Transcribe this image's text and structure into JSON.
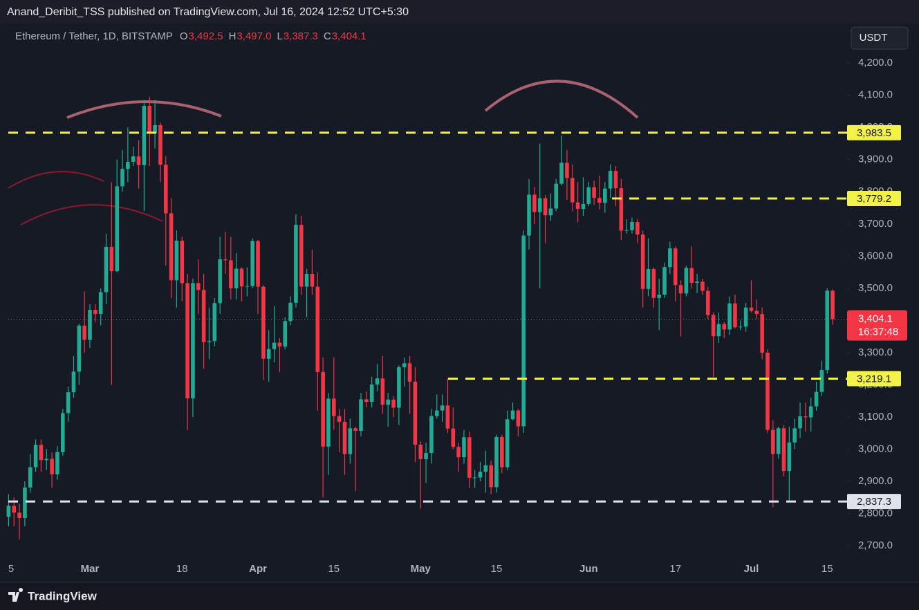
{
  "header": {
    "title": "Anand_Deribit_TSS published on TradingView.com, Jul 16, 2024 12:52 UTC+5:30",
    "logo": "TradingView"
  },
  "chart_data": {
    "type": "candlestick",
    "legend_title": "Ethereum / Tether, 1D, BITSTAMP",
    "ohlc": [
      {
        "key": "O",
        "value": 3492.5,
        "label": "3,492.5"
      },
      {
        "key": "H",
        "value": 3497.0,
        "label": "3,497.0"
      },
      {
        "key": "L",
        "value": 3387.3,
        "label": "3,387.3"
      },
      {
        "key": "C",
        "value": 3404.1,
        "label": "3,404.1"
      }
    ],
    "currency": "USDT",
    "up_color": "#22ab94",
    "down_color": "#f23645",
    "x": [
      "Feb 15",
      "Feb 16",
      "Feb 17",
      "Feb 18",
      "Feb 19",
      "Feb 20",
      "Feb 21",
      "Feb 22",
      "Feb 23",
      "Feb 24",
      "Feb 25",
      "Feb 26",
      "Feb 27",
      "Feb 28",
      "Feb 29",
      "Mar 1",
      "Mar 2",
      "Mar 3",
      "Mar 4",
      "Mar 5",
      "Mar 6",
      "Mar 7",
      "Mar 8",
      "Mar 9",
      "Mar 10",
      "Mar 11",
      "Mar 12",
      "Mar 13",
      "Mar 14",
      "Mar 15",
      "Mar 16",
      "Mar 17",
      "Mar 18",
      "Mar 19",
      "Mar 20",
      "Mar 21",
      "Mar 22",
      "Mar 23",
      "Mar 24",
      "Mar 25",
      "Mar 26",
      "Mar 27",
      "Mar 28",
      "Mar 29",
      "Mar 30",
      "Mar 31",
      "Apr 1",
      "Apr 2",
      "Apr 3",
      "Apr 4",
      "Apr 5",
      "Apr 6",
      "Apr 7",
      "Apr 8",
      "Apr 9",
      "Apr 10",
      "Apr 11",
      "Apr 12",
      "Apr 13",
      "Apr 14",
      "Apr 15",
      "Apr 16",
      "Apr 17",
      "Apr 18",
      "Apr 19",
      "Apr 20",
      "Apr 21",
      "Apr 22",
      "Apr 23",
      "Apr 24",
      "Apr 25",
      "Apr 26",
      "Apr 27",
      "Apr 28",
      "Apr 29",
      "Apr 30",
      "May 1",
      "May 2",
      "May 3",
      "May 4",
      "May 5",
      "May 6",
      "May 7",
      "May 8",
      "May 9",
      "May 10",
      "May 11",
      "May 12",
      "May 13",
      "May 14",
      "May 15",
      "May 16",
      "May 17",
      "May 18",
      "May 19",
      "May 20",
      "May 21",
      "May 22",
      "May 23",
      "May 24",
      "May 25",
      "May 26",
      "May 27",
      "May 28",
      "May 29",
      "May 30",
      "May 31",
      "Jun 1",
      "Jun 2",
      "Jun 3",
      "Jun 4",
      "Jun 5",
      "Jun 6",
      "Jun 7",
      "Jun 8",
      "Jun 9",
      "Jun 10",
      "Jun 11",
      "Jun 12",
      "Jun 13",
      "Jun 14",
      "Jun 15",
      "Jun 16",
      "Jun 17",
      "Jun 18",
      "Jun 19",
      "Jun 20",
      "Jun 21",
      "Jun 22",
      "Jun 23",
      "Jun 24",
      "Jun 25",
      "Jun 26",
      "Jun 27",
      "Jun 28",
      "Jun 29",
      "Jun 30",
      "Jul 1",
      "Jul 2",
      "Jul 3",
      "Jul 4",
      "Jul 5",
      "Jul 6",
      "Jul 7",
      "Jul 8",
      "Jul 9",
      "Jul 10",
      "Jul 11",
      "Jul 12",
      "Jul 13",
      "Jul 14",
      "Jul 15",
      "Jul 16"
    ],
    "open": [
      2790,
      2824,
      2803,
      2786,
      2881,
      2944,
      3014,
      2966,
      2970,
      2922,
      2991,
      3112,
      3177,
      3241,
      3384,
      3340,
      3433,
      3420,
      3488,
      3629,
      3553,
      3817,
      3871,
      3893,
      3910,
      3883,
      4067,
      3983,
      4007,
      3884,
      3733,
      3525,
      3648,
      3516,
      3158,
      3516,
      3495,
      3333,
      3336,
      3454,
      3590,
      3587,
      3500,
      3561,
      3506,
      3507,
      3647,
      3505,
      3281,
      3311,
      3331,
      3319,
      3398,
      3455,
      3697,
      3505,
      3545,
      3505,
      3240,
      3008,
      3157,
      3103,
      3085,
      2985,
      3065,
      3057,
      3155,
      3147,
      3201,
      3220,
      3138,
      3154,
      3129,
      3255,
      3267,
      3210,
      3014,
      2969,
      2988,
      3103,
      3120,
      3136,
      3064,
      3007,
      2975,
      3037,
      2911,
      2912,
      2930,
      2950,
      2882,
      3038,
      2944,
      3093,
      3120,
      3071,
      3664,
      3791,
      3737,
      3780,
      3727,
      3748,
      3825,
      3890,
      3843,
      3767,
      3747,
      3762,
      3814,
      3781,
      3766,
      3810,
      3865,
      3811,
      3679,
      3681,
      3706,
      3667,
      3498,
      3560,
      3470,
      3480,
      3566,
      3624,
      3510,
      3484,
      3563,
      3517,
      3521,
      3492,
      3417,
      3351,
      3389,
      3372,
      3453,
      3379,
      3381,
      3440,
      3430,
      3420,
      3300,
      3060,
      2985,
      3065,
      2932,
      3021,
      3065,
      3102,
      3099,
      3133,
      3178,
      3246,
      3492.5
    ],
    "high": [
      2860,
      2850,
      2830,
      2900,
      2985,
      3030,
      3030,
      3000,
      2990,
      3010,
      3125,
      3195,
      3290,
      3390,
      3490,
      3450,
      3450,
      3500,
      3670,
      3830,
      3900,
      3930,
      4000,
      3940,
      3960,
      4085,
      4095,
      4085,
      4015,
      3910,
      3780,
      3680,
      3660,
      3545,
      3530,
      3590,
      3545,
      3440,
      3470,
      3660,
      3675,
      3660,
      3610,
      3565,
      3565,
      3655,
      3650,
      3510,
      3370,
      3445,
      3345,
      3410,
      3475,
      3730,
      3725,
      3560,
      3620,
      3550,
      3285,
      3175,
      3285,
      3125,
      3125,
      3095,
      3070,
      3175,
      3180,
      3225,
      3265,
      3290,
      3175,
      3165,
      3260,
      3285,
      3290,
      3255,
      3025,
      3020,
      3125,
      3170,
      3170,
      3220,
      3130,
      3020,
      3060,
      3055,
      2935,
      2960,
      2995,
      2965,
      3045,
      3045,
      3120,
      3145,
      3125,
      3680,
      3840,
      3815,
      3950,
      3790,
      3795,
      3840,
      3975,
      3930,
      3885,
      3830,
      3845,
      3830,
      3835,
      3850,
      3830,
      3885,
      3880,
      3840,
      3715,
      3720,
      3715,
      3680,
      3655,
      3565,
      3530,
      3580,
      3645,
      3630,
      3525,
      3570,
      3630,
      3545,
      3530,
      3505,
      3425,
      3425,
      3395,
      3475,
      3480,
      3400,
      3455,
      3525,
      3465,
      3440,
      3310,
      3090,
      3070,
      3075,
      3070,
      3095,
      3145,
      3145,
      3160,
      3210,
      3275,
      3500,
      3497.0
    ],
    "low": [
      2760,
      2760,
      2720,
      2760,
      2865,
      2930,
      2930,
      2935,
      2880,
      2905,
      2980,
      3085,
      3160,
      3200,
      3300,
      3315,
      3395,
      3385,
      3450,
      3200,
      3550,
      3800,
      3830,
      3880,
      3810,
      3740,
      3880,
      3935,
      3830,
      3570,
      3470,
      3440,
      3460,
      3060,
      3100,
      3420,
      3250,
      3280,
      3320,
      3420,
      3545,
      3465,
      3465,
      3460,
      3475,
      3500,
      3420,
      3215,
      3210,
      3270,
      3240,
      3310,
      3385,
      3440,
      3480,
      3410,
      3480,
      3120,
      2850,
      2920,
      3060,
      2990,
      2920,
      2955,
      2870,
      3040,
      3130,
      3130,
      3180,
      3110,
      3070,
      3100,
      3075,
      3195,
      3110,
      2960,
      2815,
      2895,
      2955,
      3095,
      3085,
      3050,
      3000,
      2930,
      2955,
      2880,
      2880,
      2900,
      2865,
      2860,
      2865,
      2925,
      2935,
      3090,
      3040,
      3050,
      3620,
      3700,
      3500,
      3640,
      3710,
      3740,
      3820,
      3775,
      3740,
      3705,
      3725,
      3755,
      3760,
      3745,
      3735,
      3780,
      3755,
      3650,
      3670,
      3670,
      3640,
      3440,
      3475,
      3440,
      3370,
      3470,
      3545,
      3460,
      3350,
      3475,
      3500,
      3485,
      3480,
      3405,
      3225,
      3330,
      3345,
      3355,
      3375,
      3370,
      3365,
      3425,
      3405,
      3280,
      3050,
      2820,
      2970,
      2915,
      2840,
      3000,
      3035,
      3055,
      3055,
      3120,
      3165,
      3235,
      3387.3
    ],
    "close": [
      2824,
      2803,
      2786,
      2881,
      2944,
      3014,
      2966,
      2970,
      2922,
      2991,
      3112,
      3177,
      3241,
      3384,
      3340,
      3433,
      3420,
      3488,
      3629,
      3553,
      3817,
      3871,
      3893,
      3910,
      3883,
      4067,
      3983,
      4007,
      3884,
      3733,
      3525,
      3648,
      3516,
      3158,
      3516,
      3495,
      3333,
      3336,
      3454,
      3590,
      3587,
      3500,
      3561,
      3506,
      3507,
      3647,
      3505,
      3281,
      3311,
      3331,
      3319,
      3398,
      3455,
      3697,
      3505,
      3545,
      3505,
      3240,
      3008,
      3157,
      3103,
      3085,
      2985,
      3065,
      3057,
      3155,
      3147,
      3201,
      3220,
      3138,
      3154,
      3129,
      3255,
      3267,
      3210,
      3014,
      2969,
      2988,
      3103,
      3120,
      3136,
      3064,
      3007,
      2975,
      3037,
      2911,
      2912,
      2930,
      2950,
      2882,
      3038,
      2944,
      3093,
      3120,
      3071,
      3664,
      3791,
      3737,
      3780,
      3727,
      3748,
      3825,
      3890,
      3843,
      3767,
      3747,
      3762,
      3814,
      3781,
      3766,
      3810,
      3865,
      3811,
      3679,
      3681,
      3706,
      3667,
      3498,
      3560,
      3470,
      3480,
      3566,
      3624,
      3510,
      3484,
      3563,
      3517,
      3521,
      3492,
      3417,
      3351,
      3389,
      3372,
      3453,
      3379,
      3381,
      3440,
      3430,
      3420,
      3300,
      3060,
      2985,
      3065,
      2932,
      3021,
      3065,
      3102,
      3099,
      3133,
      3178,
      3246,
      3492.5,
      3404.1
    ],
    "ylim": [
      2655,
      4310
    ],
    "yticks": [
      {
        "value": 2700,
        "label": "2,700.0"
      },
      {
        "value": 2800,
        "label": "2,800.0"
      },
      {
        "value": 2900,
        "label": "2,900.0"
      },
      {
        "value": 3000,
        "label": "3,000.0"
      },
      {
        "value": 3100,
        "label": "3,100.0"
      },
      {
        "value": 3200,
        "label": "3,200.0"
      },
      {
        "value": 3300,
        "label": "3,300.0"
      },
      {
        "value": 3400,
        "label": "3,400.0"
      },
      {
        "value": 3500,
        "label": "3,500.0"
      },
      {
        "value": 3600,
        "label": "3,600.0"
      },
      {
        "value": 3700,
        "label": "3,700.0"
      },
      {
        "value": 3800,
        "label": "3,800.0"
      },
      {
        "value": 3900,
        "label": "3,900.0"
      },
      {
        "value": 4000,
        "label": "4,000.0"
      },
      {
        "value": 4100,
        "label": "4,100.0"
      },
      {
        "value": 4200,
        "label": "4,200.0"
      }
    ],
    "xticks": [
      {
        "value": "Feb 15",
        "label": "5"
      },
      {
        "value": "Mar 1",
        "label": "Mar"
      },
      {
        "value": "Mar 18",
        "label": "18"
      },
      {
        "value": "Apr 1",
        "label": "Apr"
      },
      {
        "value": "Apr 15",
        "label": "15"
      },
      {
        "value": "May 1",
        "label": "May"
      },
      {
        "value": "May 15",
        "label": "15"
      },
      {
        "value": "Jun 1",
        "label": "Jun"
      },
      {
        "value": "Jun 17",
        "label": "17"
      },
      {
        "value": "Jul 1",
        "label": "Jul"
      },
      {
        "value": "Jul 15",
        "label": "15"
      }
    ],
    "levels": [
      {
        "value": 3983.5,
        "label": "3,983.5",
        "color": "#f2f24a"
      },
      {
        "value": 3779.2,
        "label": "3,779.2",
        "color": "#f2f24a"
      },
      {
        "value": 3219.1,
        "label": "3,219.1",
        "color": "#f2f24a"
      },
      {
        "value": 2837.3,
        "label": "2,837.3",
        "color": "#e0e3eb"
      }
    ],
    "last_price": {
      "value": 3404.1,
      "label": "3,404.1",
      "countdown": "16:37:48",
      "color": "#f23645"
    }
  }
}
